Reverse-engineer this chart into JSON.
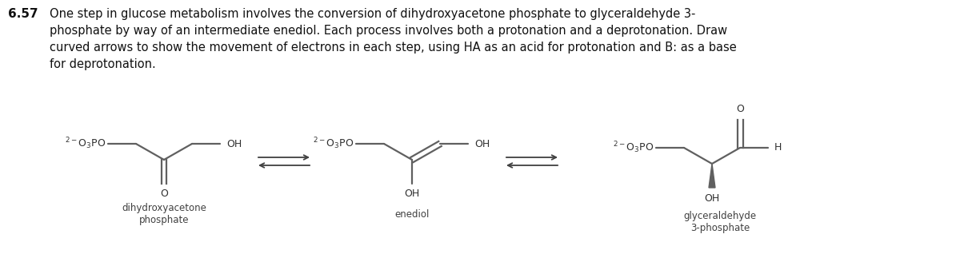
{
  "title_number": "6.57",
  "title_text": "One step in glucose metabolism involves the conversion of dihydroxyacetone phosphate to glyceraldehyde 3-\nphosphate by way of an intermediate enediol. Each process involves both a protonation and a deprotonation. Draw\ncurved arrows to show the movement of electrons in each step, using HA as an acid for protonation and B: as a base\nfor deprotonation.",
  "bg_color": "#ffffff",
  "line_color": "#606060",
  "text_color": "#303030",
  "label_color": "#404040",
  "label1": "dihydroxyacetone\nphosphate",
  "label2": "enediol",
  "label3": "glyceraldehyde\n3-phosphate",
  "fig_width": 12.0,
  "fig_height": 3.18,
  "dpi": 100
}
